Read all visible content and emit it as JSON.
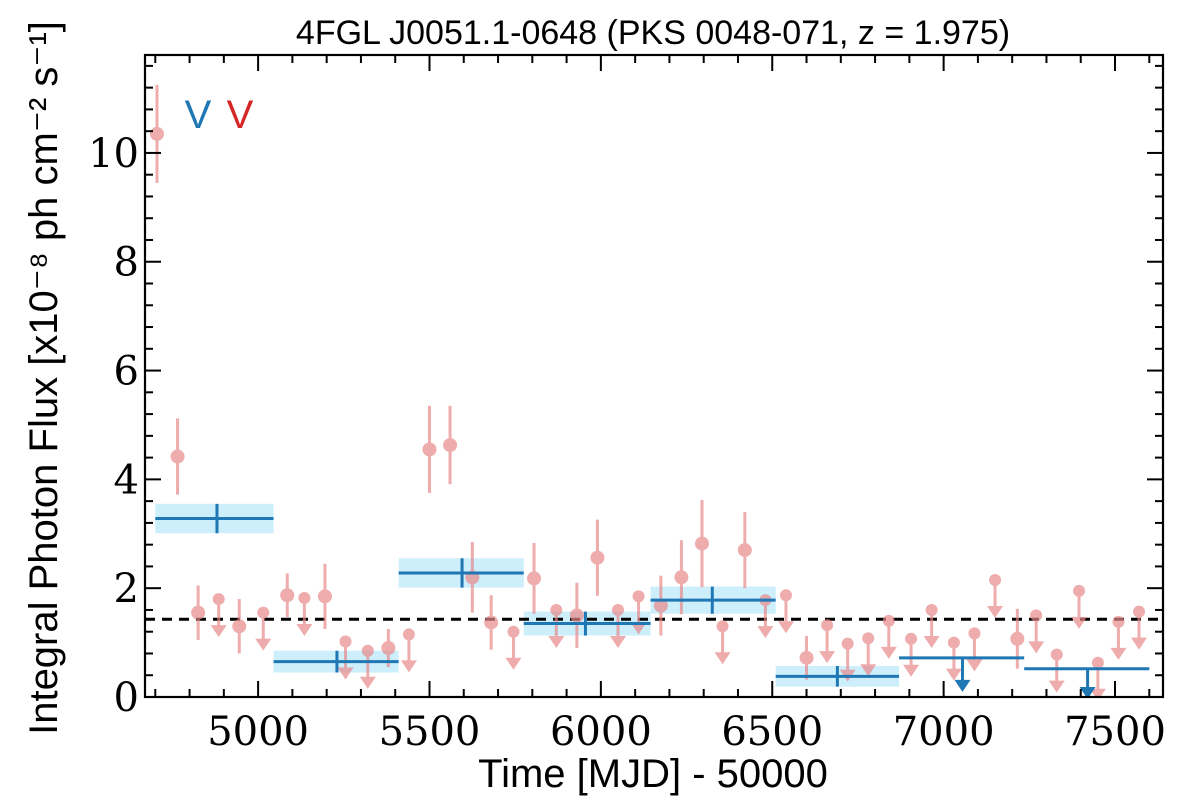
{
  "chart_data": {
    "type": "scatter",
    "title": "4FGL J0051.1-0648 (PKS 0048-071, z = 1.975)",
    "xlabel": "Time [MJD] - 50000",
    "ylabel": "Integral Photon Flux [x10⁻⁸ ph cm⁻² s⁻¹]",
    "xlim": [
      4670,
      7640
    ],
    "ylim": [
      0,
      11.8
    ],
    "x_ticks": [
      5000,
      5500,
      6000,
      6500,
      7000,
      7500
    ],
    "y_ticks": [
      0,
      2,
      4,
      6,
      8,
      10
    ],
    "grid": false,
    "legend": {
      "placement": "top-left",
      "entries": [
        {
          "label": "V",
          "color": "#1f77b4"
        },
        {
          "label": "V",
          "color": "#d62728"
        }
      ]
    },
    "mean_flux": 1.43,
    "colors": {
      "fine": "#e8898a",
      "fine_alpha": 0.7,
      "coarse": "#1f77b4",
      "coarse_band": "#cdeefb",
      "mean_line": "#000000"
    },
    "series": [
      {
        "name": "",
        "kind": "fine_bins",
        "detections": [
          {
            "x": 4705,
            "y": 10.35,
            "err": 0.9
          },
          {
            "x": 4765,
            "y": 4.42,
            "err": 0.7
          },
          {
            "x": 4825,
            "y": 1.55,
            "err": 0.5
          },
          {
            "x": 4945,
            "y": 1.3,
            "err": 0.5
          },
          {
            "x": 5085,
            "y": 1.87,
            "err": 0.4
          },
          {
            "x": 5195,
            "y": 1.85,
            "err": 0.6
          },
          {
            "x": 5380,
            "y": 0.9,
            "err": 0.35
          },
          {
            "x": 5500,
            "y": 4.55,
            "err": 0.8
          },
          {
            "x": 5560,
            "y": 4.63,
            "err": 0.72
          },
          {
            "x": 5625,
            "y": 2.2,
            "err": 0.65
          },
          {
            "x": 5680,
            "y": 1.37,
            "err": 0.5
          },
          {
            "x": 5805,
            "y": 2.18,
            "err": 0.65
          },
          {
            "x": 5930,
            "y": 1.5,
            "err": 0.6
          },
          {
            "x": 5990,
            "y": 2.56,
            "err": 0.7
          },
          {
            "x": 6175,
            "y": 1.68,
            "err": 0.55
          },
          {
            "x": 6235,
            "y": 2.2,
            "err": 0.68
          },
          {
            "x": 6295,
            "y": 2.82,
            "err": 0.8
          },
          {
            "x": 6420,
            "y": 2.7,
            "err": 0.7
          },
          {
            "x": 6600,
            "y": 0.72,
            "err": 0.4
          },
          {
            "x": 7215,
            "y": 1.07,
            "err": 0.55
          }
        ],
        "upper_limits": [
          {
            "x": 4885,
            "y": 1.8
          },
          {
            "x": 5015,
            "y": 1.55
          },
          {
            "x": 5135,
            "y": 1.82
          },
          {
            "x": 5255,
            "y": 1.02
          },
          {
            "x": 5320,
            "y": 0.85
          },
          {
            "x": 5440,
            "y": 1.15
          },
          {
            "x": 5745,
            "y": 1.2
          },
          {
            "x": 5870,
            "y": 1.6
          },
          {
            "x": 6050,
            "y": 1.6
          },
          {
            "x": 6110,
            "y": 1.85
          },
          {
            "x": 6355,
            "y": 1.3
          },
          {
            "x": 6480,
            "y": 1.78
          },
          {
            "x": 6540,
            "y": 1.87
          },
          {
            "x": 6660,
            "y": 1.32
          },
          {
            "x": 6720,
            "y": 0.98
          },
          {
            "x": 6780,
            "y": 1.08
          },
          {
            "x": 6840,
            "y": 1.4
          },
          {
            "x": 6905,
            "y": 1.07
          },
          {
            "x": 6965,
            "y": 1.6
          },
          {
            "x": 7030,
            "y": 1.0
          },
          {
            "x": 7090,
            "y": 1.17
          },
          {
            "x": 7150,
            "y": 2.15
          },
          {
            "x": 7270,
            "y": 1.5
          },
          {
            "x": 7330,
            "y": 0.78
          },
          {
            "x": 7395,
            "y": 1.95
          },
          {
            "x": 7450,
            "y": 0.63
          },
          {
            "x": 7510,
            "y": 1.38
          },
          {
            "x": 7570,
            "y": 1.57
          }
        ]
      },
      {
        "name": "",
        "kind": "coarse_bins",
        "detections": [
          {
            "x": 4880,
            "x0": 4700,
            "x1": 5045,
            "y": 3.28,
            "err": 0.27
          },
          {
            "x": 5230,
            "x0": 5045,
            "x1": 5410,
            "y": 0.65,
            "err": 0.2
          },
          {
            "x": 5595,
            "x0": 5410,
            "x1": 5775,
            "y": 2.28,
            "err": 0.27
          },
          {
            "x": 5955,
            "x0": 5775,
            "x1": 6145,
            "y": 1.35,
            "err": 0.22
          },
          {
            "x": 6325,
            "x0": 6145,
            "x1": 6510,
            "y": 1.78,
            "err": 0.25
          },
          {
            "x": 6690,
            "x0": 6510,
            "x1": 6870,
            "y": 0.38,
            "err": 0.19
          }
        ],
        "upper_limits": [
          {
            "x": 7055,
            "x0": 6870,
            "x1": 7235,
            "y": 0.72
          },
          {
            "x": 7420,
            "x0": 7235,
            "x1": 7600,
            "y": 0.52
          }
        ]
      }
    ]
  }
}
